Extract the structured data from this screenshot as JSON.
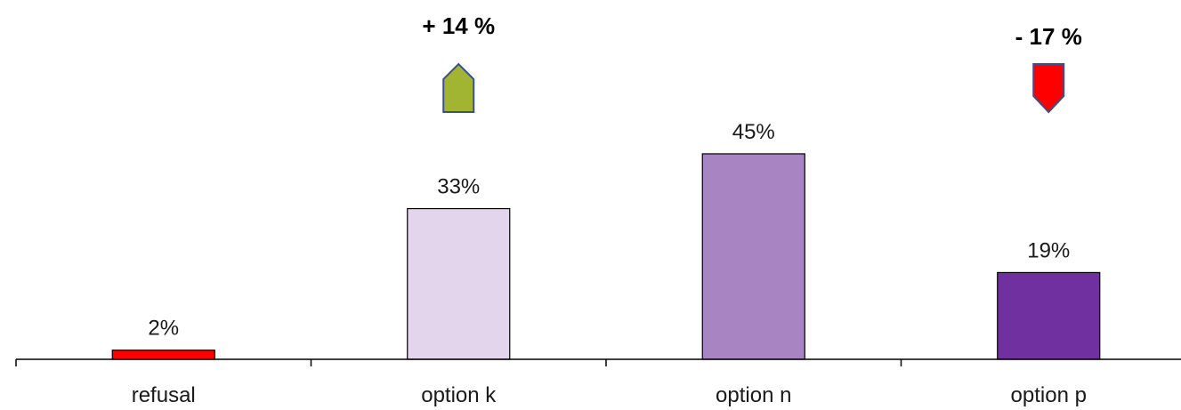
{
  "chart_data": {
    "type": "bar",
    "categories": [
      "refusal",
      "option k",
      "option n",
      "option p"
    ],
    "values": [
      2,
      33,
      45,
      19
    ],
    "value_labels": [
      "2%",
      "33%",
      "45%",
      "19%"
    ],
    "bar_colors": [
      "#ff0000",
      "#e2d5ec",
      "#a884c3",
      "#7030a0"
    ],
    "ylim": [
      0,
      52
    ],
    "grid": false,
    "changes": [
      {
        "category": "option k",
        "text": "+ 14 %",
        "direction": "up",
        "color": "#a2b532"
      },
      {
        "category": "option p",
        "text": "- 17 %",
        "direction": "down",
        "color": "#ff0000"
      }
    ]
  }
}
